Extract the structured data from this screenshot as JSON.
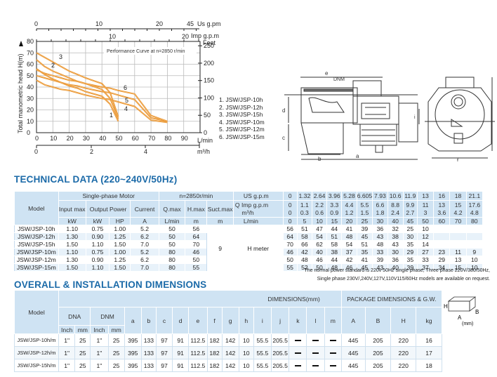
{
  "chart_data": {
    "type": "line",
    "title": "Performance Curve at n=2850 r/min",
    "xlabel": "L/min",
    "ylabel": "Total manometric head H(m)",
    "x_ticks": [
      0,
      10,
      20,
      30,
      40,
      50,
      60,
      70,
      80,
      90
    ],
    "y_ticks": [
      0,
      10,
      20,
      30,
      40,
      50,
      60,
      70,
      80
    ],
    "xlim": [
      0,
      100
    ],
    "ylim": [
      0,
      80
    ],
    "secondary_axes": {
      "top_us_gpm": {
        "label": "Us g.pm",
        "ticks": [
          "0",
          "10",
          "20",
          "45"
        ]
      },
      "top_imp_gpm": {
        "label": "Imp g.p.m",
        "ticks": [
          "10",
          "20"
        ]
      },
      "right_feet": {
        "label": "Feet",
        "ticks": [
          "0",
          "50",
          "100",
          "150",
          "200",
          "250"
        ]
      },
      "bottom_m3h": {
        "label": "m³/h",
        "ticks": [
          "0",
          "2",
          "4"
        ]
      }
    },
    "x": [
      0,
      5,
      10,
      15,
      20,
      25,
      30,
      40,
      45,
      50,
      60,
      70,
      80
    ],
    "series": [
      {
        "name": "1. JSW/JSP-10h",
        "values": [
          56,
          51,
          47,
          44,
          41,
          39,
          36,
          32,
          25,
          10,
          null,
          null,
          null
        ]
      },
      {
        "name": "2. JSW/JSP-12h",
        "values": [
          64,
          58,
          54,
          51,
          48,
          45,
          43,
          38,
          30,
          12,
          null,
          null,
          null
        ]
      },
      {
        "name": "3. JSW/JSP-15h",
        "values": [
          70,
          66,
          62,
          58,
          54,
          51,
          48,
          43,
          35,
          14,
          null,
          null,
          null
        ]
      },
      {
        "name": "4. JSW/JSP-10m",
        "values": [
          46,
          42,
          40,
          38,
          37,
          35,
          33,
          30,
          29,
          27,
          23,
          11,
          9
        ]
      },
      {
        "name": "5. JSW/JSP-12m",
        "values": [
          50,
          48,
          46,
          44,
          42,
          41,
          39,
          36,
          35,
          33,
          29,
          13,
          10
        ]
      },
      {
        "name": "6. JSW/JSP-15m",
        "values": [
          55,
          52,
          50,
          48,
          46,
          45,
          43,
          40,
          39,
          37,
          34,
          15,
          10
        ]
      }
    ],
    "curve_color": "#e8902a",
    "grid": true,
    "legend_position": "right"
  },
  "chart": {
    "ylabel": "Total manometric head H(m)",
    "annotation": "Performance Curve at n=2850 r/min",
    "unit_top1": "Us  g.pm",
    "unit_top2": "Imp  g.p.m",
    "unit_right": "Feet",
    "unit_x": "L/min",
    "unit_bottom": "m³/h",
    "curve_labels": [
      "1",
      "2",
      "3",
      "4",
      "5",
      "6"
    ],
    "legend": [
      "1. JSW/JSP-10h",
      "2. JSW/JSP-12h",
      "3. JSW/JSP-15h",
      "4. JSW/JSP-10m",
      "5. JSW/JSP-12m",
      "6. JSW/JSP-15m"
    ]
  },
  "drawing": {
    "labels": [
      "e",
      "DNM",
      "DNA",
      "d",
      "c",
      "b",
      "a",
      "i",
      "h",
      "g",
      "f"
    ]
  },
  "tech": {
    "title": "TECHNICAL DATA (220~240V/50Hz)",
    "h_model": "Model",
    "h_motor": "Single-phase Motor",
    "h_n": "n=2850r/min",
    "h_input": "Input max",
    "h_output": "Output Power",
    "h_current": "Current",
    "h_qmax": "Q.max",
    "h_hmax": "H.max",
    "h_suct": "Suct.max",
    "u_kw": "kW",
    "u_kw2": "kW",
    "u_hp": "HP",
    "u_a": "A",
    "u_lmin": "L/min",
    "u_m": "m",
    "u_m2": "m",
    "q_label": "Q",
    "q_units": [
      "US g.p.m",
      "Imp g.p.m",
      "m³/h",
      "L/min"
    ],
    "q_rows": [
      [
        "0",
        "1.32",
        "2.64",
        "3.96",
        "5.28",
        "6.605",
        "7.93",
        "10.6",
        "11.9",
        "13",
        "16",
        "18",
        "21.1"
      ],
      [
        "0",
        "1.1",
        "2.2",
        "3.3",
        "4.4",
        "5.5",
        "6.6",
        "8.8",
        "9.9",
        "11",
        "13",
        "15",
        "17.6"
      ],
      [
        "0",
        "0.3",
        "0.6",
        "0.9",
        "1.2",
        "1.5",
        "1.8",
        "2.4",
        "2.7",
        "3",
        "3.6",
        "4.2",
        "4.8"
      ],
      [
        "0",
        "5",
        "10",
        "15",
        "20",
        "25",
        "30",
        "40",
        "45",
        "50",
        "60",
        "70",
        "80"
      ]
    ],
    "suct_value": "9",
    "h_meter": "H meter",
    "rows": [
      {
        "model": "JSW/JSP-10h",
        "input": "1.10",
        "kw": "0.75",
        "hp": "1.00",
        "a": "5.2",
        "q": "50",
        "h": "56",
        "heads": [
          "56",
          "51",
          "47",
          "44",
          "41",
          "39",
          "36",
          "32",
          "25",
          "10",
          "",
          "",
          ""
        ]
      },
      {
        "model": "JSW/JSP-12h",
        "input": "1.30",
        "kw": "0.90",
        "hp": "1.25",
        "a": "6.2",
        "q": "50",
        "h": "64",
        "heads": [
          "64",
          "58",
          "54",
          "51",
          "48",
          "45",
          "43",
          "38",
          "30",
          "12",
          "",
          "",
          ""
        ]
      },
      {
        "model": "JSW/JSP-15h",
        "input": "1.50",
        "kw": "1.10",
        "hp": "1.50",
        "a": "7.0",
        "q": "50",
        "h": "70",
        "heads": [
          "70",
          "66",
          "62",
          "58",
          "54",
          "51",
          "48",
          "43",
          "35",
          "14",
          "",
          "",
          ""
        ]
      },
      {
        "model": "JSW/JSP-10m",
        "input": "1.10",
        "kw": "0.75",
        "hp": "1.00",
        "a": "5.2",
        "q": "80",
        "h": "46",
        "heads": [
          "46",
          "42",
          "40",
          "38",
          "37",
          "35",
          "33",
          "30",
          "29",
          "27",
          "23",
          "11",
          "9"
        ]
      },
      {
        "model": "JSW/JSP-12m",
        "input": "1.30",
        "kw": "0.90",
        "hp": "1.25",
        "a": "6.2",
        "q": "80",
        "h": "50",
        "heads": [
          "50",
          "48",
          "46",
          "44",
          "42",
          "41",
          "39",
          "36",
          "35",
          "33",
          "29",
          "13",
          "10"
        ]
      },
      {
        "model": "JSW/JSP-15m",
        "input": "1.50",
        "kw": "1.10",
        "hp": "1.50",
        "a": "7.0",
        "q": "80",
        "h": "55",
        "heads": [
          "55",
          "52",
          "50",
          "48",
          "46",
          "45",
          "43",
          "40",
          "39",
          "37",
          "34",
          "15",
          "10"
        ]
      }
    ],
    "note_1": "The normal power standard is 220v 50Hz single phase, Three phase 220V/380/50Hz,",
    "note_2": "Single phase 230V/,240V,127V,110V115/60Hz models are available on request."
  },
  "dims": {
    "title": "OVERALL & INSTALLATION DIMENSIONS",
    "h_model": "Model",
    "h_dims": "DIMENSIONS(mm)",
    "h_pkg": "PACKAGE DIMENSIONS & G.W.",
    "h_dna": "DNA",
    "h_dnm": "DNM",
    "h_inch": "Inch",
    "h_mm": "mm",
    "h_inch2": "Inch",
    "h_mm2": "mm",
    "cols": [
      "a",
      "b",
      "c",
      "d",
      "e",
      "f",
      "g",
      "h",
      "i",
      "j",
      "k",
      "l",
      "m"
    ],
    "pkg_cols": [
      "A",
      "B",
      "H",
      "kg"
    ],
    "rows": [
      {
        "model": "JSW/JSP-10h/m",
        "dna_in": "1\"",
        "dna_mm": "25",
        "dnm_in": "1\"",
        "dnm_mm": "25",
        "v": [
          "395",
          "133",
          "97",
          "91",
          "112.5",
          "182",
          "142",
          "10",
          "55.5",
          "205.5"
        ],
        "pkg": [
          "445",
          "205",
          "220",
          "16"
        ]
      },
      {
        "model": "JSW/JSP-12h/m",
        "dna_in": "1\"",
        "dna_mm": "25",
        "dnm_in": "1\"",
        "dnm_mm": "25",
        "v": [
          "395",
          "133",
          "97",
          "91",
          "112.5",
          "182",
          "142",
          "10",
          "55.5",
          "205.5"
        ],
        "pkg": [
          "445",
          "205",
          "220",
          "17"
        ]
      },
      {
        "model": "JSW/JSP-15h/m",
        "dna_in": "1\"",
        "dna_mm": "25",
        "dnm_in": "1\"",
        "dnm_mm": "25",
        "v": [
          "395",
          "133",
          "97",
          "91",
          "112.5",
          "182",
          "142",
          "10",
          "55.5",
          "205.5"
        ],
        "pkg": [
          "445",
          "205",
          "220",
          "18"
        ]
      }
    ],
    "box_labels": {
      "h": "H",
      "b": "B",
      "a": "A",
      "unit": "(mm)"
    }
  }
}
